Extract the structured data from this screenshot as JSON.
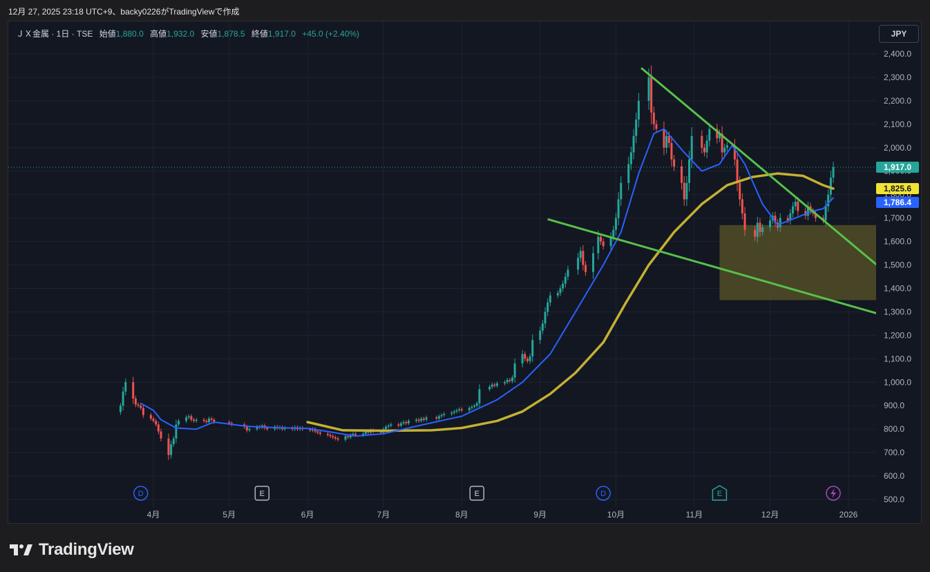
{
  "caption": "12月 27, 2025 23:18 UTC+9、backy0226がTradingViewで作成",
  "legend": {
    "symbol": "ＪＸ金属 · 1日 · TSE",
    "open_label": "始値",
    "open": "1,880.0",
    "high_label": "高値",
    "high": "1,932.0",
    "low_label": "安値",
    "low": "1,878.5",
    "close_label": "終値",
    "close": "1,917.0",
    "change": "+45.0 (+2.40%)"
  },
  "currency_button": "JPY",
  "price_tags": {
    "last": "1,917.0",
    "ma_slow": "1,825.6",
    "ma_fast": "1,786.4"
  },
  "logo_text": "TradingView",
  "colors": {
    "up": "#26a69a",
    "down": "#ef5350",
    "ma_fast": "#2962ff",
    "ma_slow": "#c3b133",
    "trendline": "#57c14a",
    "zone": "#5a5527",
    "background": "#131722",
    "grid": "#1f2330"
  },
  "event_markers": [
    {
      "type": "D",
      "date": "2025-03-27",
      "icon": "dividend-icon"
    },
    {
      "type": "E",
      "date": "2025-05-14",
      "icon": "earnings-icon"
    },
    {
      "type": "E",
      "date": "2025-08-07",
      "icon": "earnings-icon"
    },
    {
      "type": "D",
      "date": "2025-09-26",
      "icon": "dividend-icon"
    },
    {
      "type": "E",
      "date": "2025-11-11",
      "icon": "earnings-icon"
    },
    {
      "type": "lightning",
      "date": "2025-12-26",
      "icon": "lightning-icon"
    }
  ],
  "chart_data": {
    "type": "candlestick",
    "title": "",
    "y_axis": {
      "range": [
        500,
        2450
      ],
      "ticks": [
        500,
        600,
        700,
        800,
        900,
        1000,
        1100,
        1200,
        1300,
        1400,
        1500,
        1600,
        1700,
        1800,
        1900,
        2000,
        2100,
        2200,
        2300,
        2400
      ],
      "tick_labels": [
        "500.0",
        "600.0",
        "700.0",
        "800.0",
        "900.0",
        "1,000.0",
        "1,100.0",
        "1,200.0",
        "1,300.0",
        "1,400.0",
        "1,500.0",
        "1,600.0",
        "1,700.0",
        "1,800.0",
        "1,900.0",
        "2,000.0",
        "2,100.0",
        "2,200.0",
        "2,300.0",
        "2,400.0"
      ]
    },
    "x_axis": {
      "range": [
        "2025-03-01",
        "2026-01-15"
      ],
      "ticks": [
        {
          "date": "2025-04-01",
          "label": "4月"
        },
        {
          "date": "2025-05-01",
          "label": "5月"
        },
        {
          "date": "2025-06-01",
          "label": "6月"
        },
        {
          "date": "2025-07-01",
          "label": "7月"
        },
        {
          "date": "2025-08-01",
          "label": "8月"
        },
        {
          "date": "2025-09-01",
          "label": "9月"
        },
        {
          "date": "2025-10-01",
          "label": "10月"
        },
        {
          "date": "2025-11-01",
          "label": "11月"
        },
        {
          "date": "2025-12-01",
          "label": "12月"
        },
        {
          "date": "2026-01-01",
          "label": "2026"
        }
      ]
    },
    "last_price_line": 1917.0,
    "close_series": [
      [
        "2025-03-19",
        900
      ],
      [
        "2025-03-20",
        960
      ],
      [
        "2025-03-21",
        1000
      ],
      [
        "2025-03-24",
        930
      ],
      [
        "2025-03-25",
        905
      ],
      [
        "2025-03-26",
        900
      ],
      [
        "2025-03-27",
        890
      ],
      [
        "2025-03-28",
        860
      ],
      [
        "2025-03-31",
        845
      ],
      [
        "2025-04-01",
        835
      ],
      [
        "2025-04-02",
        820
      ],
      [
        "2025-04-03",
        790
      ],
      [
        "2025-04-04",
        760
      ],
      [
        "2025-04-07",
        690
      ],
      [
        "2025-04-08",
        735
      ],
      [
        "2025-04-09",
        760
      ],
      [
        "2025-04-10",
        820
      ],
      [
        "2025-04-11",
        835
      ],
      [
        "2025-04-14",
        850
      ],
      [
        "2025-04-15",
        855
      ],
      [
        "2025-04-16",
        840
      ],
      [
        "2025-04-17",
        835
      ],
      [
        "2025-04-18",
        840
      ],
      [
        "2025-04-21",
        835
      ],
      [
        "2025-04-22",
        830
      ],
      [
        "2025-04-23",
        845
      ],
      [
        "2025-04-24",
        840
      ],
      [
        "2025-04-25",
        830
      ],
      [
        "2025-05-01",
        825
      ],
      [
        "2025-05-02",
        820
      ],
      [
        "2025-05-07",
        810
      ],
      [
        "2025-05-08",
        795
      ],
      [
        "2025-05-09",
        800
      ],
      [
        "2025-05-12",
        810
      ],
      [
        "2025-05-13",
        808
      ],
      [
        "2025-05-14",
        815
      ],
      [
        "2025-05-15",
        805
      ],
      [
        "2025-05-16",
        800
      ],
      [
        "2025-05-19",
        810
      ],
      [
        "2025-05-20",
        805
      ],
      [
        "2025-05-21",
        808
      ],
      [
        "2025-05-22",
        800
      ],
      [
        "2025-05-23",
        805
      ],
      [
        "2025-05-26",
        800
      ],
      [
        "2025-05-27",
        808
      ],
      [
        "2025-05-28",
        800
      ],
      [
        "2025-05-29",
        805
      ],
      [
        "2025-05-30",
        800
      ],
      [
        "2025-06-02",
        795
      ],
      [
        "2025-06-03",
        800
      ],
      [
        "2025-06-04",
        790
      ],
      [
        "2025-06-05",
        785
      ],
      [
        "2025-06-06",
        780
      ],
      [
        "2025-06-09",
        775
      ],
      [
        "2025-06-10",
        770
      ],
      [
        "2025-06-11",
        765
      ],
      [
        "2025-06-12",
        760
      ],
      [
        "2025-06-13",
        755
      ],
      [
        "2025-06-16",
        770
      ],
      [
        "2025-06-17",
        765
      ],
      [
        "2025-06-18",
        775
      ],
      [
        "2025-06-19",
        780
      ],
      [
        "2025-06-20",
        775
      ],
      [
        "2025-06-23",
        780
      ],
      [
        "2025-06-24",
        790
      ],
      [
        "2025-06-25",
        785
      ],
      [
        "2025-06-26",
        795
      ],
      [
        "2025-06-27",
        790
      ],
      [
        "2025-06-30",
        785
      ],
      [
        "2025-07-01",
        800
      ],
      [
        "2025-07-02",
        810
      ],
      [
        "2025-07-03",
        815
      ],
      [
        "2025-07-04",
        820
      ],
      [
        "2025-07-07",
        815
      ],
      [
        "2025-07-08",
        825
      ],
      [
        "2025-07-09",
        830
      ],
      [
        "2025-07-10",
        825
      ],
      [
        "2025-07-11",
        835
      ],
      [
        "2025-07-14",
        840
      ],
      [
        "2025-07-15",
        835
      ],
      [
        "2025-07-16",
        845
      ],
      [
        "2025-07-17",
        840
      ],
      [
        "2025-07-18",
        850
      ],
      [
        "2025-07-22",
        845
      ],
      [
        "2025-07-23",
        855
      ],
      [
        "2025-07-24",
        860
      ],
      [
        "2025-07-25",
        865
      ],
      [
        "2025-07-28",
        870
      ],
      [
        "2025-07-29",
        875
      ],
      [
        "2025-07-30",
        880
      ],
      [
        "2025-07-31",
        885
      ],
      [
        "2025-08-01",
        880
      ],
      [
        "2025-08-04",
        890
      ],
      [
        "2025-08-05",
        895
      ],
      [
        "2025-08-06",
        900
      ],
      [
        "2025-08-07",
        910
      ],
      [
        "2025-08-08",
        970
      ],
      [
        "2025-08-12",
        980
      ],
      [
        "2025-08-13",
        990
      ],
      [
        "2025-08-14",
        985
      ],
      [
        "2025-08-15",
        995
      ],
      [
        "2025-08-18",
        1000
      ],
      [
        "2025-08-19",
        1010
      ],
      [
        "2025-08-20",
        1005
      ],
      [
        "2025-08-21",
        1020
      ],
      [
        "2025-08-22",
        1080
      ],
      [
        "2025-08-25",
        1120
      ],
      [
        "2025-08-26",
        1100
      ],
      [
        "2025-08-27",
        1090
      ],
      [
        "2025-08-28",
        1110
      ],
      [
        "2025-08-29",
        1180
      ],
      [
        "2025-09-01",
        1220
      ],
      [
        "2025-09-02",
        1250
      ],
      [
        "2025-09-03",
        1300
      ],
      [
        "2025-09-04",
        1340
      ],
      [
        "2025-09-05",
        1370
      ],
      [
        "2025-09-08",
        1380
      ],
      [
        "2025-09-09",
        1400
      ],
      [
        "2025-09-10",
        1420
      ],
      [
        "2025-09-11",
        1450
      ],
      [
        "2025-09-12",
        1480
      ],
      [
        "2025-09-16",
        1530
      ],
      [
        "2025-09-17",
        1560
      ],
      [
        "2025-09-18",
        1500
      ],
      [
        "2025-09-19",
        1470
      ],
      [
        "2025-09-22",
        1550
      ],
      [
        "2025-09-24",
        1620
      ],
      [
        "2025-09-25",
        1600
      ],
      [
        "2025-09-26",
        1580
      ],
      [
        "2025-09-29",
        1620
      ],
      [
        "2025-09-30",
        1650
      ],
      [
        "2025-10-01",
        1700
      ],
      [
        "2025-10-02",
        1780
      ],
      [
        "2025-10-03",
        1850
      ],
      [
        "2025-10-06",
        1930
      ],
      [
        "2025-10-07",
        1980
      ],
      [
        "2025-10-08",
        2050
      ],
      [
        "2025-10-09",
        2120
      ],
      [
        "2025-10-10",
        2200
      ],
      [
        "2025-10-14",
        2300
      ],
      [
        "2025-10-15",
        2150
      ],
      [
        "2025-10-16",
        2100
      ],
      [
        "2025-10-17",
        2080
      ],
      [
        "2025-10-20",
        2000
      ],
      [
        "2025-10-21",
        2050
      ],
      [
        "2025-10-22",
        2020
      ],
      [
        "2025-10-23",
        1950
      ],
      [
        "2025-10-24",
        1920
      ],
      [
        "2025-10-27",
        1850
      ],
      [
        "2025-10-28",
        1780
      ],
      [
        "2025-10-29",
        1850
      ],
      [
        "2025-10-30",
        1950
      ],
      [
        "2025-10-31",
        2050
      ],
      [
        "2025-11-04",
        2000
      ],
      [
        "2025-11-05",
        1980
      ],
      [
        "2025-11-06",
        2030
      ],
      [
        "2025-11-07",
        2080
      ],
      [
        "2025-11-10",
        2040
      ],
      [
        "2025-11-11",
        2060
      ],
      [
        "2025-11-12",
        1980
      ],
      [
        "2025-11-13",
        2000
      ],
      [
        "2025-11-14",
        2010
      ],
      [
        "2025-11-17",
        1950
      ],
      [
        "2025-11-18",
        1850
      ],
      [
        "2025-11-19",
        1780
      ],
      [
        "2025-11-20",
        1720
      ],
      [
        "2025-11-21",
        1650
      ],
      [
        "2025-11-25",
        1620
      ],
      [
        "2025-11-26",
        1680
      ],
      [
        "2025-11-27",
        1640
      ],
      [
        "2025-11-28",
        1660
      ],
      [
        "2025-12-01",
        1690
      ],
      [
        "2025-12-02",
        1710
      ],
      [
        "2025-12-03",
        1680
      ],
      [
        "2025-12-04",
        1660
      ],
      [
        "2025-12-05",
        1700
      ],
      [
        "2025-12-08",
        1690
      ],
      [
        "2025-12-09",
        1720
      ],
      [
        "2025-12-10",
        1750
      ],
      [
        "2025-12-11",
        1770
      ],
      [
        "2025-12-12",
        1730
      ],
      [
        "2025-12-15",
        1710
      ],
      [
        "2025-12-16",
        1750
      ],
      [
        "2025-12-17",
        1730
      ],
      [
        "2025-12-18",
        1720
      ],
      [
        "2025-12-19",
        1700
      ],
      [
        "2025-12-22",
        1690
      ],
      [
        "2025-12-23",
        1750
      ],
      [
        "2025-12-24",
        1800
      ],
      [
        "2025-12-25",
        1872
      ],
      [
        "2025-12-26",
        1917
      ]
    ],
    "ma_fast_series": [
      [
        "2025-03-27",
        910
      ],
      [
        "2025-04-01",
        880
      ],
      [
        "2025-04-04",
        840
      ],
      [
        "2025-04-10",
        805
      ],
      [
        "2025-04-18",
        800
      ],
      [
        "2025-04-25",
        830
      ],
      [
        "2025-05-08",
        812
      ],
      [
        "2025-05-20",
        806
      ],
      [
        "2025-06-01",
        803
      ],
      [
        "2025-06-10",
        788
      ],
      [
        "2025-06-20",
        770
      ],
      [
        "2025-07-01",
        780
      ],
      [
        "2025-07-15",
        815
      ],
      [
        "2025-08-01",
        855
      ],
      [
        "2025-08-15",
        925
      ],
      [
        "2025-08-25",
        1000
      ],
      [
        "2025-09-05",
        1120
      ],
      [
        "2025-09-15",
        1300
      ],
      [
        "2025-09-26",
        1500
      ],
      [
        "2025-10-03",
        1640
      ],
      [
        "2025-10-10",
        1890
      ],
      [
        "2025-10-16",
        2060
      ],
      [
        "2025-10-20",
        2080
      ],
      [
        "2025-10-28",
        1980
      ],
      [
        "2025-11-04",
        1900
      ],
      [
        "2025-11-11",
        1930
      ],
      [
        "2025-11-16",
        2010
      ],
      [
        "2025-11-21",
        1930
      ],
      [
        "2025-11-28",
        1760
      ],
      [
        "2025-12-04",
        1670
      ],
      [
        "2025-12-11",
        1700
      ],
      [
        "2025-12-18",
        1730
      ],
      [
        "2025-12-22",
        1740
      ],
      [
        "2025-12-26",
        1786.4
      ]
    ],
    "ma_slow_series": [
      [
        "2025-06-01",
        830
      ],
      [
        "2025-06-15",
        795
      ],
      [
        "2025-07-01",
        793
      ],
      [
        "2025-07-20",
        795
      ],
      [
        "2025-08-01",
        805
      ],
      [
        "2025-08-15",
        835
      ],
      [
        "2025-08-25",
        875
      ],
      [
        "2025-09-05",
        950
      ],
      [
        "2025-09-15",
        1040
      ],
      [
        "2025-09-26",
        1170
      ],
      [
        "2025-10-05",
        1340
      ],
      [
        "2025-10-14",
        1500
      ],
      [
        "2025-10-24",
        1640
      ],
      [
        "2025-11-04",
        1760
      ],
      [
        "2025-11-14",
        1840
      ],
      [
        "2025-11-24",
        1875
      ],
      [
        "2025-12-04",
        1890
      ],
      [
        "2025-12-14",
        1880
      ],
      [
        "2025-12-22",
        1840
      ],
      [
        "2025-12-26",
        1825.6
      ]
    ],
    "trendlines": [
      {
        "from": [
          "2025-10-11",
          2340
        ],
        "to": [
          "2026-01-15",
          1475
        ]
      },
      {
        "from": [
          "2025-09-04",
          1695
        ],
        "to": [
          "2026-01-15",
          1285
        ]
      }
    ],
    "zone": {
      "from": "2025-11-11",
      "to": "2026-01-12",
      "low": 1350,
      "high": 1670
    }
  }
}
